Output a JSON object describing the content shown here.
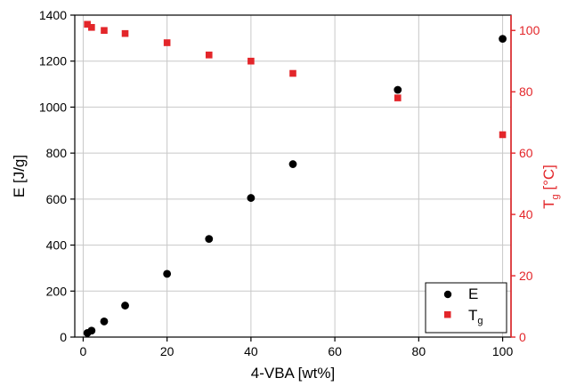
{
  "chart_data": {
    "type": "scatter",
    "title": "",
    "xlabel": "4-VBA [wt%]",
    "ylabel_left": "E [J/g]",
    "ylabel_right": {
      "main": "T",
      "sub": "g",
      "unit": " [°C]"
    },
    "xlim": [
      -2,
      102
    ],
    "ylim_left": [
      0,
      1400
    ],
    "ylim_right": [
      0,
      105
    ],
    "x_ticks": [
      0,
      20,
      40,
      60,
      80,
      100
    ],
    "y_left_ticks": [
      0,
      200,
      400,
      600,
      800,
      1000,
      1200,
      1400
    ],
    "y_right_ticks": [
      0,
      20,
      40,
      60,
      80,
      100
    ],
    "grid": true,
    "legend_position": "bottom-right",
    "colors": {
      "E": "#000000",
      "Tg": "#e3262a",
      "right_axis": "#e3262a",
      "grid": "#c8c8c8"
    },
    "series": [
      {
        "name": "E",
        "label_main": "E",
        "label_sub": "",
        "axis": "left",
        "marker": "circle",
        "x": [
          1,
          2,
          5,
          10,
          20,
          30,
          40,
          50,
          75,
          100
        ],
        "y": [
          18,
          28,
          68,
          137,
          275,
          427,
          605,
          752,
          1075,
          1297
        ]
      },
      {
        "name": "Tg",
        "label_main": "T",
        "label_sub": "g",
        "axis": "right",
        "marker": "square",
        "x": [
          1,
          2,
          5,
          10,
          20,
          30,
          40,
          50,
          75,
          100
        ],
        "y": [
          102,
          101,
          100,
          99,
          96,
          92,
          90,
          86,
          78,
          66
        ]
      }
    ]
  }
}
